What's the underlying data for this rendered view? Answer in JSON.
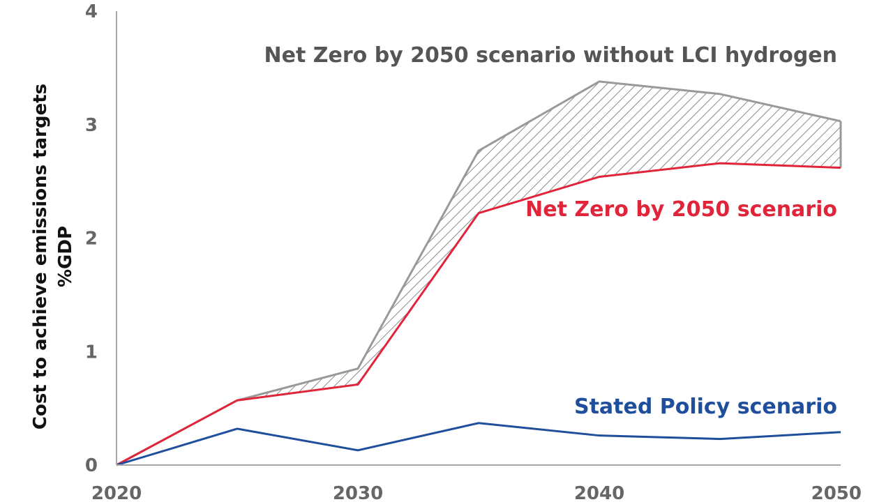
{
  "chart_data": {
    "type": "area",
    "x": [
      2020,
      2025,
      2030,
      2035,
      2040,
      2045,
      2050
    ],
    "x_ticks": [
      2020,
      2030,
      2040,
      2050
    ],
    "y_ticks": [
      0,
      1,
      2,
      3,
      4
    ],
    "xlim": [
      2020,
      2050
    ],
    "ylim": [
      0,
      4
    ],
    "ylabel_line1": "Cost to achieve emissions targets",
    "ylabel_line2": "%GDP",
    "grid": false,
    "series": [
      {
        "name": "Net Zero by 2050 scenario without LCI hydrogen",
        "values": [
          0,
          0.57,
          0.85,
          2.77,
          3.38,
          3.27,
          3.03
        ],
        "color": "#999999"
      },
      {
        "name": "Net Zero by 2050 scenario",
        "values": [
          0,
          0.57,
          0.71,
          2.22,
          2.54,
          2.66,
          2.62
        ],
        "color": "#e0253a"
      },
      {
        "name": "Stated Policy scenario",
        "values": [
          0,
          0.32,
          0.13,
          0.37,
          0.26,
          0.23,
          0.29
        ],
        "color": "#1f4e9c"
      }
    ],
    "shaded_band": "Net Zero by 2050 scenario without LCI hydrogen minus Net Zero by 2050 scenario (hatched)"
  }
}
